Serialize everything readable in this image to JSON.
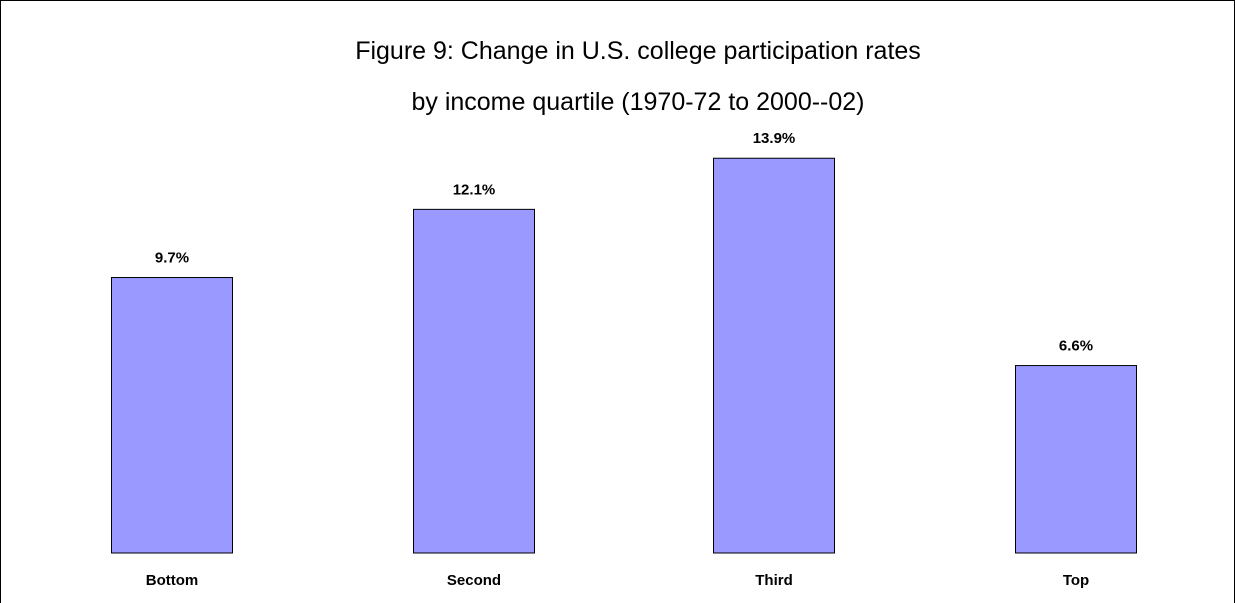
{
  "chart_data": {
    "type": "bar",
    "title_line1": "Figure 9: Change in U.S. college participation rates",
    "title_line2": "by income quartile (1970-72 to 2000--02)",
    "categories": [
      "Bottom",
      "Second",
      "Third",
      "Top"
    ],
    "values": [
      9.7,
      12.1,
      13.9,
      6.6
    ],
    "value_labels": [
      "9.7%",
      "12.1%",
      "13.9%",
      "6.6%"
    ],
    "ylim": [
      0,
      15
    ],
    "grid": false,
    "bar_color": "#9999ff",
    "bar_stroke": "#000000"
  }
}
